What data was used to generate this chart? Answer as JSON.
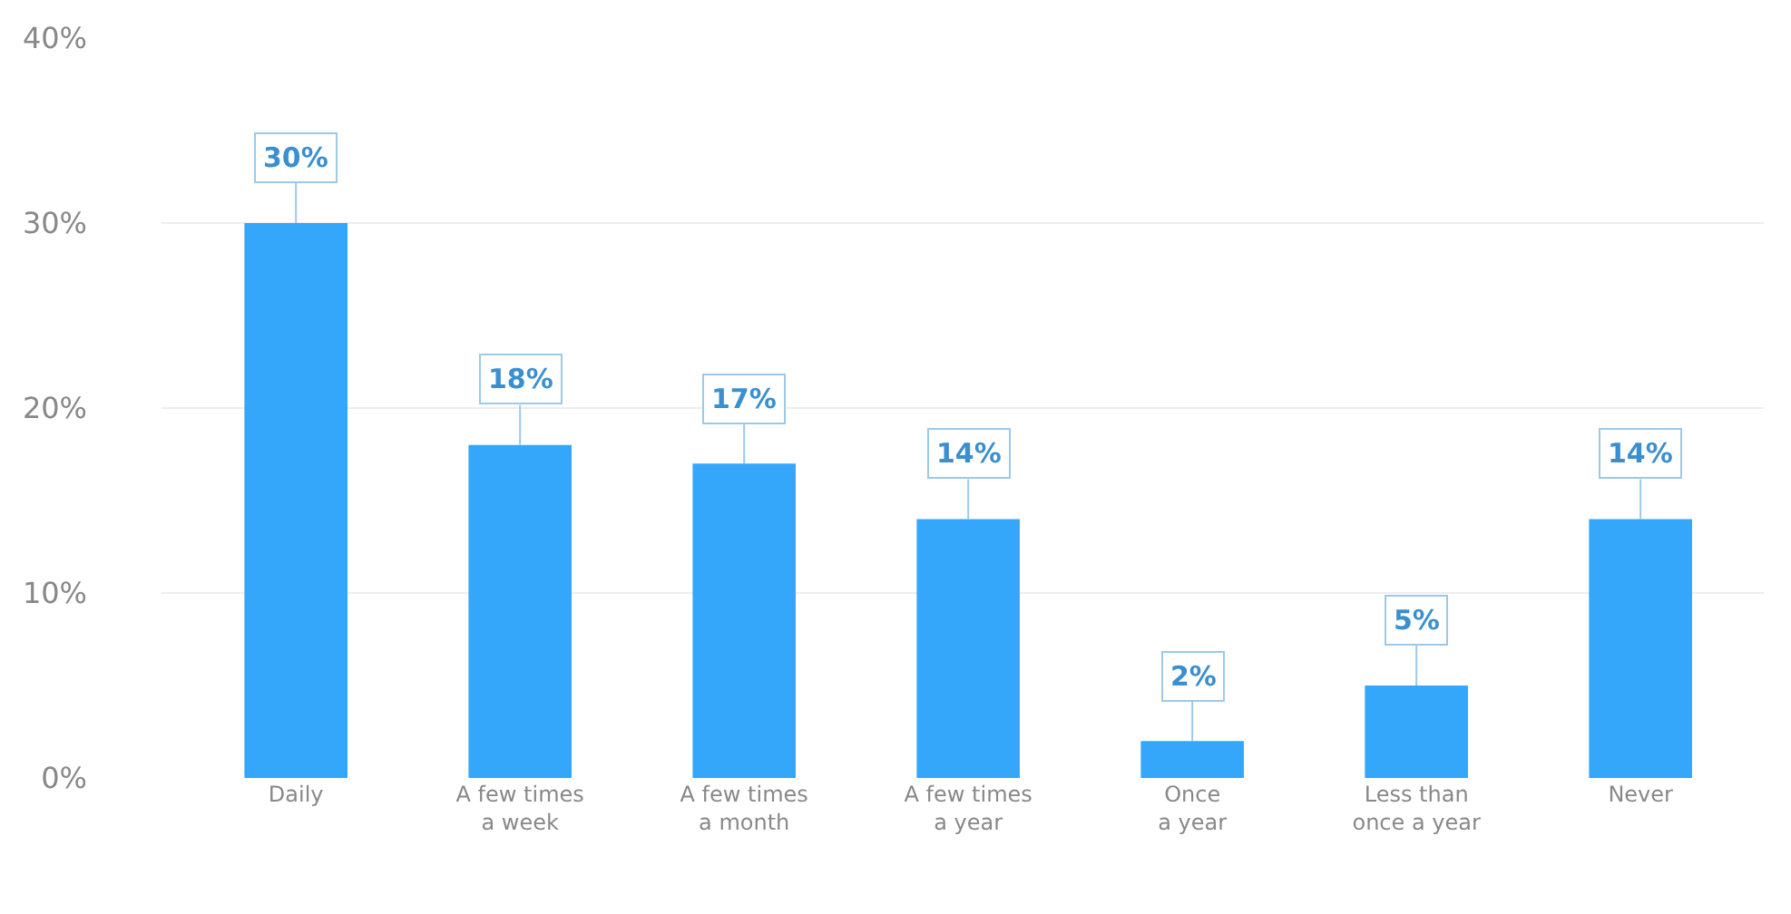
{
  "chart_data": {
    "type": "bar",
    "categories": [
      "Daily",
      "A few times\na week",
      "A few times\na month",
      "A few times\na year",
      "Once\na year",
      "Less than\nonce a year",
      "Never"
    ],
    "values": [
      30,
      18,
      17,
      14,
      2,
      5,
      14
    ],
    "value_labels": [
      "30%",
      "18%",
      "17%",
      "14%",
      "2%",
      "5%",
      "14%"
    ],
    "color": "#35a7fb",
    "ylim": [
      0,
      40
    ],
    "yticks": [
      {
        "value": 0,
        "label": "0%"
      },
      {
        "value": 10,
        "label": "10%"
      },
      {
        "value": 20,
        "label": "20%"
      },
      {
        "value": 30,
        "label": "30%"
      },
      {
        "value": 40,
        "label": "40%"
      }
    ],
    "grid": "y"
  }
}
